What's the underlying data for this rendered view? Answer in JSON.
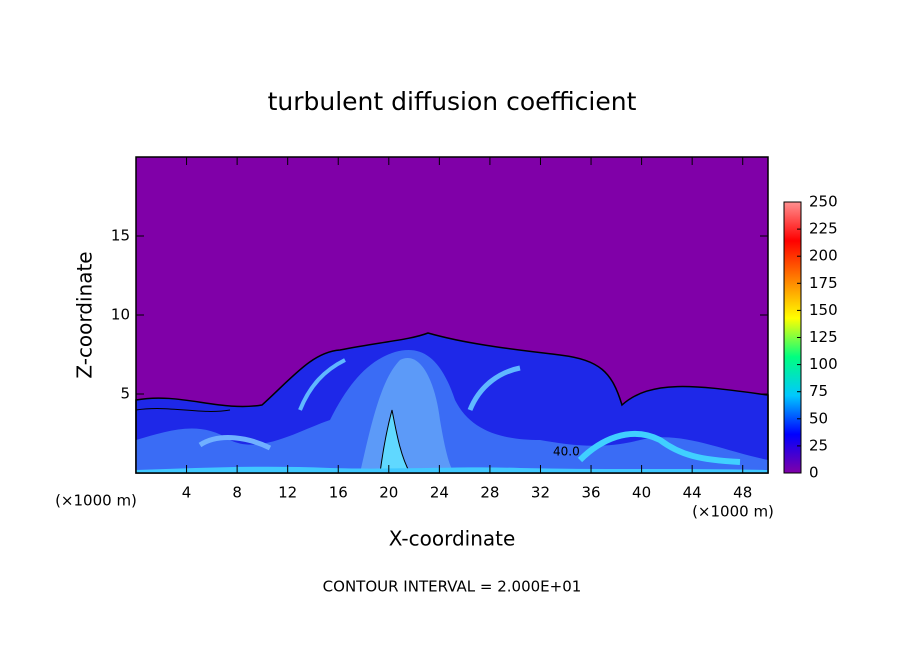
{
  "chart_data": {
    "type": "contour",
    "title": "turbulent diffusion coefficient",
    "x_label": "X-coordinate",
    "y_label": "Z-coordinate",
    "x_unit_left": "(×1000 m)",
    "x_unit_right": "(×1000 m)",
    "xlim": [
      0,
      50
    ],
    "xticks": [
      4,
      8,
      12,
      16,
      20,
      24,
      28,
      32,
      36,
      40,
      44,
      48
    ],
    "ylim": [
      0,
      20
    ],
    "yticks": [
      5,
      10,
      15
    ],
    "colorbar": {
      "clim": [
        0,
        250
      ],
      "ticks": [
        0,
        25,
        50,
        75,
        100,
        125,
        150,
        175,
        200,
        225,
        250
      ],
      "colors": [
        "#8000a8",
        "#0000ff",
        "#00c8ff",
        "#00ff80",
        "#ffff00",
        "#ff8000",
        "#ff0000",
        "#ff9090"
      ]
    },
    "annotations": [
      "40.0"
    ],
    "footer": "CONTOUR INTERVAL = 2.000E+01"
  }
}
